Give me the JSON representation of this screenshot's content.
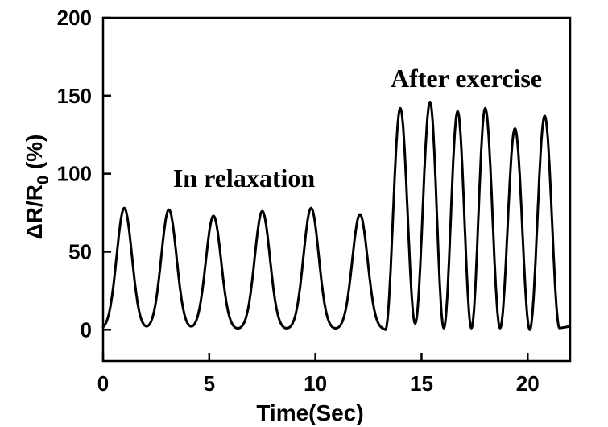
{
  "chart_data": {
    "type": "line",
    "xlabel": "Time(Sec)",
    "ylabel_parts": {
      "main": "ΔR/R",
      "sub": "0",
      "unit": " (%)"
    },
    "xlim": [
      0,
      22
    ],
    "ylim": [
      -20,
      200
    ],
    "xticks": [
      0,
      5,
      10,
      15,
      20
    ],
    "yticks": [
      0,
      50,
      100,
      150,
      200
    ],
    "grid": false,
    "annotations": [
      {
        "text": "In relaxation",
        "x": 8.0,
        "y": 98
      },
      {
        "text": "After exercise",
        "x": 17.5,
        "y": 160
      }
    ],
    "series": [
      {
        "name": "relaxation",
        "peak_times": [
          1.0,
          3.1,
          5.2,
          7.5,
          9.8,
          12.1
        ],
        "peak_values": [
          78,
          77,
          73,
          76,
          78,
          74
        ],
        "baseline": 0
      },
      {
        "name": "after exercise",
        "peak_times": [
          14.0,
          15.4,
          16.7,
          18.0,
          19.4,
          20.8
        ],
        "peak_values": [
          142,
          146,
          140,
          142,
          129,
          137
        ],
        "trough_times": [
          13.3,
          14.7,
          16.05,
          17.35,
          18.7,
          20.1,
          21.5
        ],
        "trough_values": [
          0,
          4,
          1,
          1,
          1,
          0,
          1
        ]
      }
    ]
  }
}
